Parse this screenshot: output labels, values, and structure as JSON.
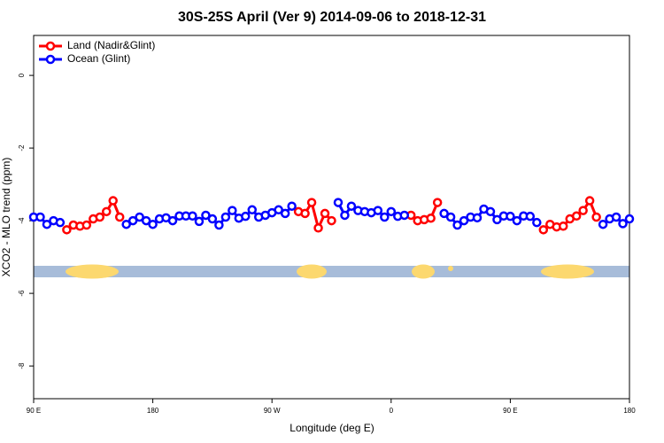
{
  "chart_data": {
    "type": "line",
    "title": "30S-25S April (Ver 9)   2014-09-06 to 2018-12-31",
    "x_label": "Longitude (deg E)",
    "y_label": "XCO2 - MLO trend (ppm)",
    "x": [
      90,
      95,
      100,
      105,
      110,
      115,
      120,
      125,
      130,
      135,
      140,
      145,
      150,
      155,
      160,
      165,
      170,
      175,
      180,
      185,
      190,
      195,
      200,
      205,
      210,
      215,
      220,
      225,
      230,
      235,
      240,
      245,
      250,
      255,
      260,
      265,
      270,
      275,
      280,
      285,
      290,
      295,
      300,
      305,
      310,
      315,
      320,
      325,
      330,
      335,
      340,
      345,
      350,
      355,
      360,
      365,
      370,
      375,
      380,
      385,
      390,
      395,
      400,
      405,
      410,
      415,
      420,
      425,
      430,
      435,
      440,
      445,
      450,
      455,
      460,
      465,
      470,
      475,
      480,
      485,
      490,
      495,
      500,
      505,
      510,
      515,
      520,
      525,
      530,
      535,
      540
    ],
    "series": [
      {
        "name": "Land (Nadir&Glint)",
        "color": "#ff0000",
        "values": [
          null,
          null,
          null,
          null,
          null,
          -4.25,
          -4.12,
          -4.15,
          -4.12,
          -3.95,
          -3.9,
          -3.75,
          -3.45,
          -3.9,
          null,
          null,
          null,
          null,
          null,
          null,
          null,
          null,
          null,
          null,
          null,
          null,
          null,
          null,
          null,
          null,
          null,
          null,
          null,
          null,
          null,
          null,
          null,
          null,
          null,
          null,
          -3.75,
          -3.8,
          -3.5,
          -4.2,
          -3.8,
          -4.0,
          null,
          null,
          null,
          null,
          null,
          null,
          null,
          null,
          null,
          null,
          null,
          -3.85,
          -4.0,
          -3.97,
          -3.93,
          -3.5,
          null,
          null,
          null,
          null,
          null,
          null,
          null,
          null,
          null,
          null,
          null,
          null,
          null,
          null,
          null,
          -4.25,
          -4.1,
          -4.17,
          -4.15,
          -3.95,
          -3.87,
          -3.72,
          -3.45,
          -3.9,
          null,
          null,
          null,
          null,
          null
        ]
      },
      {
        "name": "Ocean (Glint)",
        "color": "#0000ff",
        "values": [
          -3.9,
          -3.9,
          -4.1,
          -4.0,
          -4.05,
          null,
          null,
          null,
          null,
          null,
          null,
          null,
          null,
          null,
          -4.1,
          -4.0,
          -3.9,
          -4.0,
          -4.1,
          -3.95,
          -3.92,
          -4.0,
          -3.87,
          -3.87,
          -3.87,
          -4.02,
          -3.85,
          -3.95,
          -4.12,
          -3.9,
          -3.72,
          -3.93,
          -3.88,
          -3.7,
          -3.9,
          -3.85,
          -3.78,
          -3.7,
          -3.8,
          -3.6,
          null,
          null,
          null,
          null,
          null,
          null,
          -3.5,
          -3.85,
          -3.6,
          -3.72,
          -3.75,
          -3.78,
          -3.72,
          -3.9,
          -3.75,
          -3.88,
          -3.85,
          null,
          null,
          null,
          null,
          null,
          -3.8,
          -3.9,
          -4.12,
          -4.0,
          -3.9,
          -3.92,
          -3.68,
          -3.75,
          -3.97,
          -3.87,
          -3.88,
          -4.0,
          -3.87,
          -3.88,
          -4.05,
          null,
          null,
          null,
          null,
          null,
          null,
          null,
          null,
          null,
          -4.1,
          -3.95,
          -3.9,
          -4.08,
          -3.95
        ]
      }
    ],
    "xlim": [
      90,
      540
    ],
    "xticks": [
      {
        "value": 90,
        "label": "90 E"
      },
      {
        "value": 180,
        "label": "180"
      },
      {
        "value": 270,
        "label": "90 W"
      },
      {
        "value": 360,
        "label": "0"
      },
      {
        "value": 450,
        "label": "90 E"
      },
      {
        "value": 540,
        "label": "180"
      }
    ],
    "ylim": [
      -8.9,
      1.1
    ],
    "yticks": [
      0,
      -2,
      -4,
      -6,
      -8
    ],
    "legend": "top-left"
  }
}
